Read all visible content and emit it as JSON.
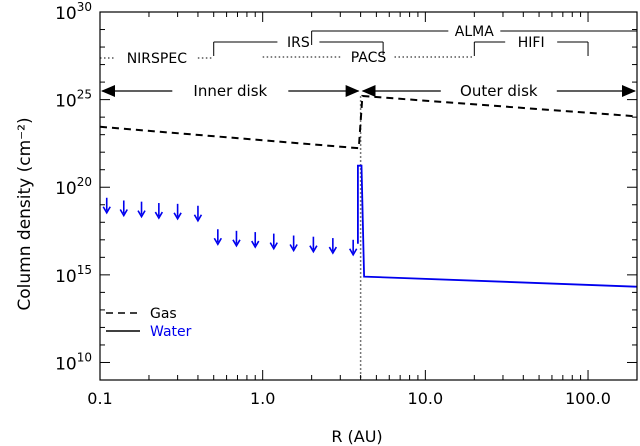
{
  "chart_data": {
    "type": "line",
    "xlabel": "R (AU)",
    "ylabel": "Column density (cm⁻²)",
    "xscale": "log",
    "yscale": "log",
    "xlim": [
      0.1,
      200
    ],
    "ylim": [
      1000000000.0,
      1e+30
    ],
    "x_ticks": [
      {
        "value": 0.1,
        "label": "0.1"
      },
      {
        "value": 1.0,
        "label": "1.0"
      },
      {
        "value": 10.0,
        "label": "10.0"
      },
      {
        "value": 100.0,
        "label": "100.0"
      }
    ],
    "y_ticks": [
      {
        "value": 10000000000.0,
        "label": "10",
        "exp": "10"
      },
      {
        "value": 1000000000000000.0,
        "label": "10",
        "exp": "15"
      },
      {
        "value": 1e+20,
        "label": "10",
        "exp": "20"
      },
      {
        "value": 1e+25,
        "label": "10",
        "exp": "25"
      },
      {
        "value": 1e+30,
        "label": "10",
        "exp": "30"
      }
    ],
    "grid": false,
    "legend": {
      "position": "bottom-left",
      "entries": [
        {
          "label": "Gas",
          "style": "dashed",
          "color": "#000000"
        },
        {
          "label": "Water",
          "style": "solid",
          "color": "#0000ee"
        }
      ]
    },
    "series": [
      {
        "name": "Gas",
        "style": "dashed",
        "color": "#000000",
        "points": [
          [
            0.1,
            2.8e+23
          ],
          [
            3.9,
            1.7e+22
          ],
          [
            4.1,
            1.6e+25
          ],
          [
            200,
            1.1e+24
          ]
        ]
      },
      {
        "name": "Water",
        "style": "solid",
        "color": "#0000ee",
        "points": [
          [
            3.85,
            6e+16
          ],
          [
            3.85,
            1.7e+21
          ],
          [
            4.05,
            1.7e+21
          ],
          [
            4.2,
            800000000000000.0
          ],
          [
            200,
            210000000000000.0
          ]
        ]
      }
    ],
    "upper_limits": {
      "color": "#0000ee",
      "points": [
        [
          0.11,
          1e+19
        ],
        [
          0.14,
          7e+18
        ],
        [
          0.18,
          6e+18
        ],
        [
          0.23,
          5e+18
        ],
        [
          0.3,
          4.5e+18
        ],
        [
          0.4,
          3.5e+18
        ],
        [
          0.53,
          1.6e+17
        ],
        [
          0.69,
          1.3e+17
        ],
        [
          0.9,
          1.1e+17
        ],
        [
          1.17,
          9e+16
        ],
        [
          1.55,
          7e+16
        ],
        [
          2.05,
          6e+16
        ],
        [
          2.7,
          5e+16
        ],
        [
          3.6,
          4e+16
        ]
      ]
    },
    "boundary_line": {
      "x": 4.0,
      "style": "dotted",
      "color": "#777777"
    },
    "regions": [
      {
        "label": "Inner disk",
        "x_from": 0.1,
        "x_to": 4.0
      },
      {
        "label": "Outer disk",
        "x_from": 4.0,
        "x_to": 200
      }
    ],
    "instruments": [
      {
        "label": "NIRSPEC",
        "x_from": 0.1,
        "x_to": 0.5,
        "style": "dotted"
      },
      {
        "label": "IRS",
        "x_from": 0.5,
        "x_to": 5.5,
        "style": "solid"
      },
      {
        "label": "PACS",
        "x_from": 1.0,
        "x_to": 20,
        "style": "dotted"
      },
      {
        "label": "HIFI",
        "x_from": 20,
        "x_to": 100,
        "style": "solid"
      },
      {
        "label": "ALMA",
        "x_from": 2.0,
        "x_to": 200,
        "style": "solid"
      }
    ]
  }
}
